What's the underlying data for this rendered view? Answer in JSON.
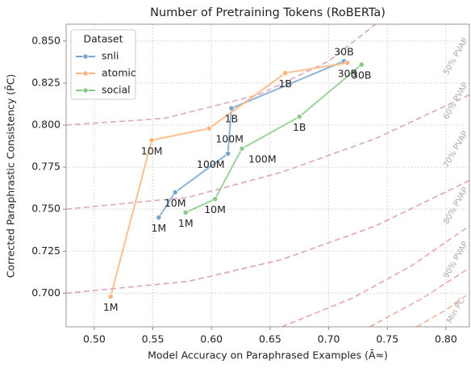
{
  "chart_data": {
    "type": "line",
    "title": "Number of Pretraining Tokens (RoBERTa)",
    "x_label": "Model Accuracy on Paraphrased Examples (Ā≈)",
    "y_label": "Corrected Paraphrastic Consistency (P̄C)",
    "xlim": [
      0.476,
      0.82
    ],
    "ylim": [
      0.68,
      0.86
    ],
    "xticks": [
      {
        "value": 0.5,
        "label": "0.50"
      },
      {
        "value": 0.55,
        "label": "0.55"
      },
      {
        "value": 0.6,
        "label": "0.60"
      },
      {
        "value": 0.65,
        "label": "0.65"
      },
      {
        "value": 0.7,
        "label": "0.70"
      },
      {
        "value": 0.75,
        "label": "0.75"
      },
      {
        "value": 0.8,
        "label": "0.80"
      }
    ],
    "yticks": [
      {
        "value": 0.7,
        "label": "0.700"
      },
      {
        "value": 0.725,
        "label": "0.725"
      },
      {
        "value": 0.75,
        "label": "0.750"
      },
      {
        "value": 0.775,
        "label": "0.775"
      },
      {
        "value": 0.8,
        "label": "0.800"
      },
      {
        "value": 0.825,
        "label": "0.825"
      },
      {
        "value": 0.85,
        "label": "0.850"
      }
    ],
    "grid": true,
    "legend_title": "Dataset",
    "legend": "upper left",
    "series": [
      {
        "name": "snli",
        "color": "#7aa6cc",
        "x": [
          0.555,
          0.569,
          0.614,
          0.617,
          0.713
        ],
        "values": [
          0.745,
          0.76,
          0.783,
          0.81,
          0.838
        ],
        "point_labels": [
          "1M",
          "10M",
          "100M",
          "1B",
          "30B"
        ]
      },
      {
        "name": "atomic",
        "color": "#fdb47a",
        "x": [
          0.514,
          0.549,
          0.598,
          0.663,
          0.716
        ],
        "values": [
          0.698,
          0.791,
          0.798,
          0.831,
          0.837
        ],
        "point_labels": [
          "1M",
          "10M",
          "100M",
          "1B",
          "30B"
        ]
      },
      {
        "name": "social",
        "color": "#8dca8a",
        "x": [
          0.578,
          0.603,
          0.626,
          0.675,
          0.728
        ],
        "values": [
          0.748,
          0.756,
          0.786,
          0.805,
          0.836
        ],
        "point_labels": [
          "1M",
          "10M",
          "100M",
          "1B",
          "30B"
        ]
      }
    ],
    "reference_curves": [
      {
        "label": "50% PVAP",
        "color": "#d8a8c4",
        "points": [
          [
            0.476,
            0.8
          ],
          [
            0.56,
            0.804
          ],
          [
            0.64,
            0.818
          ],
          [
            0.7,
            0.838
          ],
          [
            0.74,
            0.86
          ]
        ]
      },
      {
        "label": "60% PVAP",
        "color": "#dca6bf",
        "points": [
          [
            0.476,
            0.75
          ],
          [
            0.58,
            0.757
          ],
          [
            0.66,
            0.772
          ],
          [
            0.74,
            0.792
          ],
          [
            0.82,
            0.818
          ]
        ]
      },
      {
        "label": "70% PVAP",
        "color": "#e0a4b8",
        "points": [
          [
            0.476,
            0.7
          ],
          [
            0.58,
            0.707
          ],
          [
            0.66,
            0.72
          ],
          [
            0.74,
            0.74
          ],
          [
            0.82,
            0.767
          ]
        ]
      },
      {
        "label": "80% PVAP",
        "color": "#e8a6ae",
        "points": [
          [
            0.66,
            0.68
          ],
          [
            0.72,
            0.697
          ],
          [
            0.77,
            0.716
          ],
          [
            0.82,
            0.74
          ]
        ]
      },
      {
        "label": "90% PVAP",
        "color": "#f0aaa6",
        "points": [
          [
            0.735,
            0.68
          ],
          [
            0.78,
            0.697
          ],
          [
            0.82,
            0.715
          ]
        ]
      },
      {
        "label": "Min P̄C",
        "color": "#f4b4a0",
        "points": [
          [
            0.775,
            0.68
          ],
          [
            0.8,
            0.69
          ],
          [
            0.82,
            0.7
          ]
        ]
      }
    ]
  }
}
